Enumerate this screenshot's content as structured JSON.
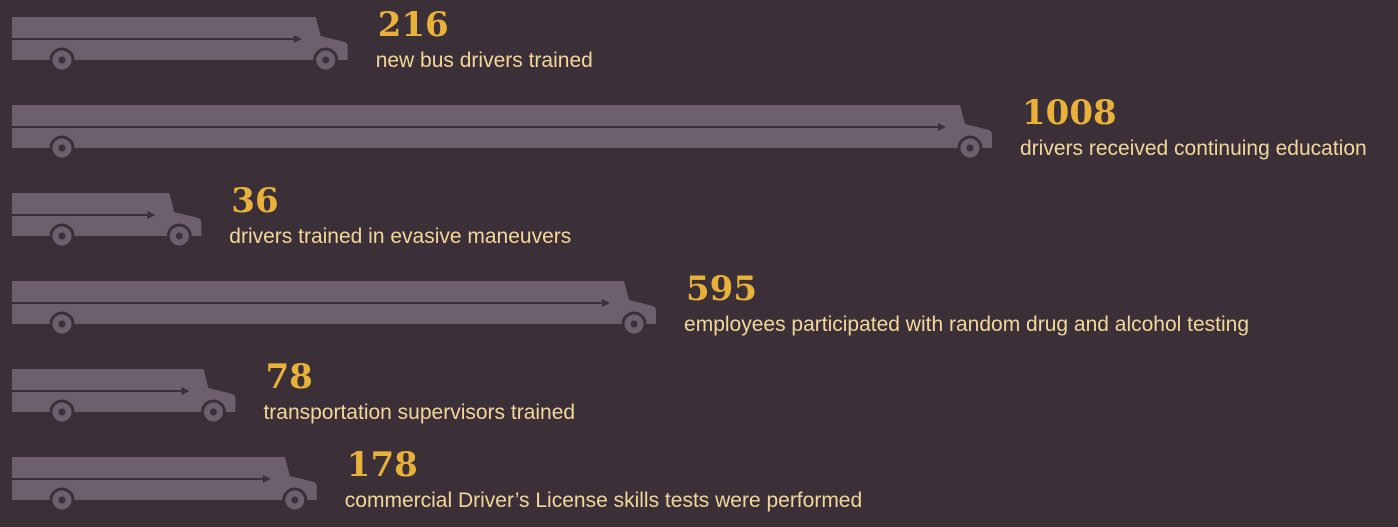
{
  "chart_data": {
    "type": "bar",
    "categories": [
      "new bus drivers trained",
      "drivers received continuing education",
      "drivers trained in evasive maneuvers",
      "employees participated with random drug and alcohol testing",
      "transportation supervisors trained",
      "commercial Driver’s License skills tests were performed"
    ],
    "values": [
      216,
      1008,
      36,
      595,
      78,
      178
    ],
    "color": "#6e5f6e"
  }
}
